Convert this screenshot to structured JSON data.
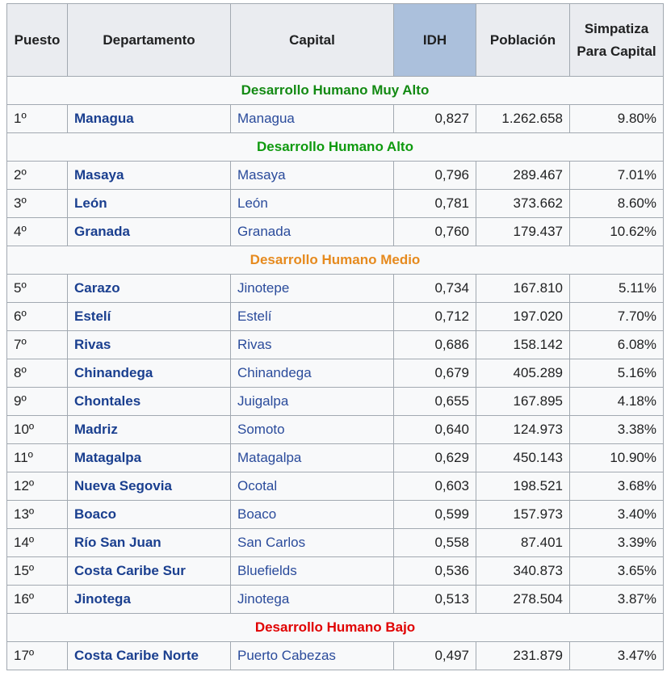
{
  "headers": {
    "puesto": "Puesto",
    "departamento": "Departamento",
    "capital": "Capital",
    "idh": "IDH",
    "poblacion": "Población",
    "simpatiza": "Simpatiza Para Capital"
  },
  "colors": {
    "muy_alto": "#138a13",
    "alto": "#0f9a0f",
    "medio": "#e68a1e",
    "bajo": "#e00000",
    "link_bold": "#1a3f8f",
    "link": "#2a4b9b",
    "header_bg": "#eaecf0",
    "sorted_header_bg": "#abc0dc"
  },
  "groups": [
    {
      "label": "Desarrollo Humano Muy Alto",
      "color_key": "muy_alto",
      "rows": [
        {
          "puesto": "1º",
          "departamento": "Managua",
          "capital": "Managua",
          "idh": "0,827",
          "poblacion": "1.262.658",
          "simpatiza": "9.80%"
        }
      ]
    },
    {
      "label": "Desarrollo Humano Alto",
      "color_key": "alto",
      "rows": [
        {
          "puesto": "2º",
          "departamento": "Masaya",
          "capital": "Masaya",
          "idh": "0,796",
          "poblacion": "289.467",
          "simpatiza": "7.01%"
        },
        {
          "puesto": "3º",
          "departamento": "León",
          "capital": "León",
          "idh": "0,781",
          "poblacion": "373.662",
          "simpatiza": "8.60%"
        },
        {
          "puesto": "4º",
          "departamento": "Granada",
          "capital": "Granada",
          "idh": "0,760",
          "poblacion": "179.437",
          "simpatiza": "10.62%"
        }
      ]
    },
    {
      "label": "Desarrollo Humano Medio",
      "color_key": "medio",
      "rows": [
        {
          "puesto": "5º",
          "departamento": "Carazo",
          "capital": "Jinotepe",
          "idh": "0,734",
          "poblacion": "167.810",
          "simpatiza": "5.11%"
        },
        {
          "puesto": "6º",
          "departamento": "Estelí",
          "capital": "Estelí",
          "idh": "0,712",
          "poblacion": "197.020",
          "simpatiza": "7.70%"
        },
        {
          "puesto": "7º",
          "departamento": "Rivas",
          "capital": "Rivas",
          "idh": "0,686",
          "poblacion": "158.142",
          "simpatiza": "6.08%"
        },
        {
          "puesto": "8º",
          "departamento": "Chinandega",
          "capital": "Chinandega",
          "idh": "0,679",
          "poblacion": "405.289",
          "simpatiza": "5.16%"
        },
        {
          "puesto": "9º",
          "departamento": "Chontales",
          "capital": "Juigalpa",
          "idh": "0,655",
          "poblacion": "167.895",
          "simpatiza": "4.18%"
        },
        {
          "puesto": "10º",
          "departamento": "Madriz",
          "capital": "Somoto",
          "idh": "0,640",
          "poblacion": "124.973",
          "simpatiza": "3.38%"
        },
        {
          "puesto": "11º",
          "departamento": "Matagalpa",
          "capital": "Matagalpa",
          "idh": "0,629",
          "poblacion": "450.143",
          "simpatiza": "10.90%"
        },
        {
          "puesto": "12º",
          "departamento": "Nueva Segovia",
          "capital": "Ocotal",
          "idh": "0,603",
          "poblacion": "198.521",
          "simpatiza": "3.68%"
        },
        {
          "puesto": "13º",
          "departamento": "Boaco",
          "capital": "Boaco",
          "idh": "0,599",
          "poblacion": "157.973",
          "simpatiza": "3.40%"
        },
        {
          "puesto": "14º",
          "departamento": "Río San Juan",
          "capital": "San Carlos",
          "idh": "0,558",
          "poblacion": "87.401",
          "simpatiza": "3.39%"
        },
        {
          "puesto": "15º",
          "departamento": "Costa Caribe Sur",
          "capital": "Bluefields",
          "idh": "0,536",
          "poblacion": "340.873",
          "simpatiza": "3.65%"
        },
        {
          "puesto": "16º",
          "departamento": "Jinotega",
          "capital": "Jinotega",
          "idh": "0,513",
          "poblacion": "278.504",
          "simpatiza": "3.87%"
        }
      ]
    },
    {
      "label": "Desarrollo Humano Bajo",
      "color_key": "bajo",
      "rows": [
        {
          "puesto": "17º",
          "departamento": "Costa Caribe Norte",
          "capital": "Puerto Cabezas",
          "idh": "0,497",
          "poblacion": "231.879",
          "simpatiza": "3.47%"
        }
      ]
    }
  ]
}
